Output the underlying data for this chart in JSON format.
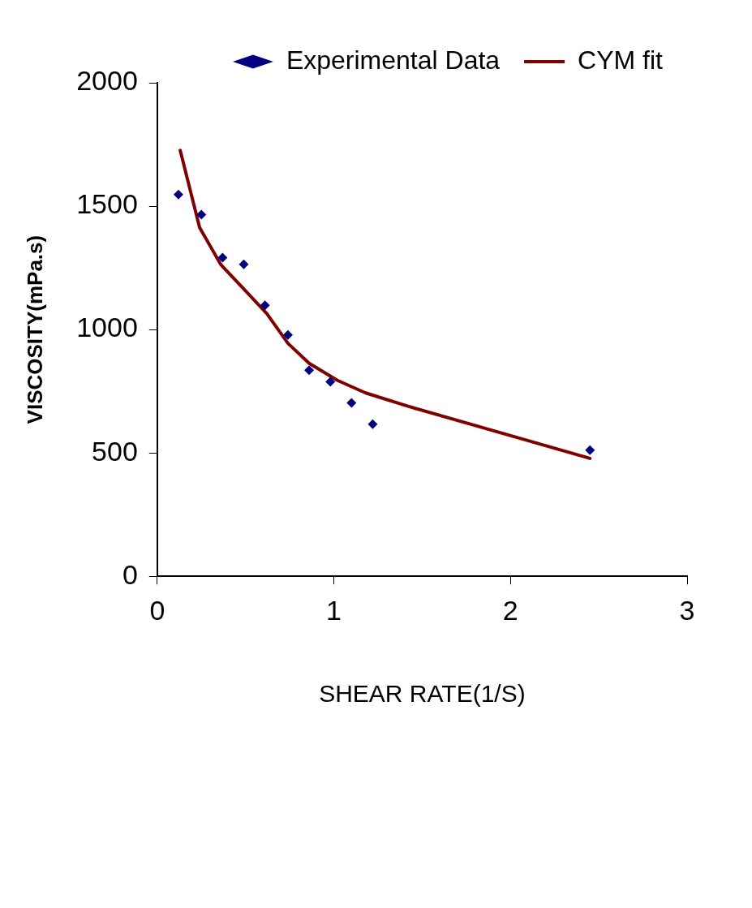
{
  "chart_data": {
    "type": "scatter",
    "xlabel": "SHEAR RATE(1/S)",
    "ylabel": "VISCOSITY(mPa.s)",
    "xlim": [
      0,
      3
    ],
    "xticks": [
      0,
      1,
      2,
      3
    ],
    "ylim": [
      0,
      2000
    ],
    "yticks": [
      0,
      500,
      1000,
      1500,
      2000
    ],
    "grid": false,
    "legend": "top right",
    "series": [
      {
        "name": "Experimental Data",
        "marker": "diamond",
        "color": "#000080",
        "x": [
          0.12,
          0.25,
          0.37,
          0.49,
          0.61,
          0.74,
          0.86,
          0.98,
          1.1,
          1.22,
          2.45
        ],
        "values": [
          1547,
          1466,
          1291,
          1264,
          1098,
          978,
          835,
          788,
          703,
          616,
          511
        ]
      },
      {
        "name": "CYM fit",
        "type": "line",
        "marker": "none",
        "line_style": "solid",
        "color": "#800000",
        "x": [
          0.13,
          0.24,
          0.36,
          0.49,
          0.62,
          0.74,
          0.86,
          1.02,
          1.18,
          1.42,
          2.45
        ],
        "values": [
          1726,
          1413,
          1263,
          1164,
          1065,
          944,
          863,
          794,
          743,
          689,
          478
        ]
      }
    ]
  }
}
